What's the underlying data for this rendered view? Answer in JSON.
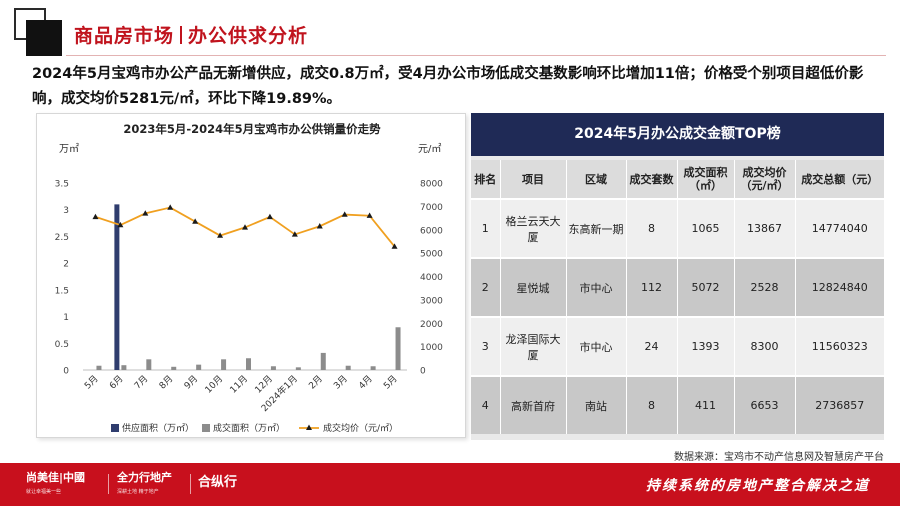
{
  "header": {
    "title_part1": "商品房市场",
    "title_part2": "办公供求分析"
  },
  "summary": "2024年5月宝鸡市办公产品无新增供应，成交0.8万㎡，受4月办公市场低成交基数影响环比增加11倍；价格受个别项目超低价影响，成交均价5281元/㎡，环比下降19.89%。",
  "chart_data": {
    "type": "bar+line",
    "title": "2023年5月-2024年5月宝鸡市办公供销量价走势",
    "y_left_unit": "万㎡",
    "y_right_unit": "元/㎡",
    "y_left_ticks": [
      "0",
      "0.5",
      "1",
      "1.5",
      "2",
      "2.5",
      "3",
      "3.5"
    ],
    "y_left_range": [
      0,
      3.5
    ],
    "y_right_ticks": [
      "0",
      "1000",
      "2000",
      "3000",
      "4000",
      "5000",
      "6000",
      "7000",
      "8000"
    ],
    "y_right_range": [
      0,
      8000
    ],
    "categories": [
      "5月",
      "6月",
      "7月",
      "8月",
      "9月",
      "10月",
      "11月",
      "12月",
      "2024年1月",
      "2月",
      "3月",
      "4月",
      "5月"
    ],
    "series": [
      {
        "name": "供应面积（万㎡）",
        "type": "bar",
        "axis": "left",
        "color": "#2f3d6e",
        "values": [
          0,
          3.1,
          0,
          0,
          0,
          0,
          0,
          0,
          0,
          0,
          0,
          0,
          0
        ]
      },
      {
        "name": "成交面积（万㎡）",
        "type": "bar",
        "axis": "left",
        "color": "#8c8c8c",
        "values": [
          0.08,
          0.09,
          0.2,
          0.06,
          0.1,
          0.2,
          0.22,
          0.07,
          0.05,
          0.32,
          0.08,
          0.07,
          0.8
        ]
      },
      {
        "name": "成交均价（元/㎡）",
        "type": "line",
        "axis": "right",
        "color": "#f0a020",
        "values": [
          6550,
          6200,
          6700,
          6950,
          6350,
          5750,
          6100,
          6550,
          5800,
          6150,
          6650,
          6600,
          5281
        ]
      }
    ],
    "legend_position": "bottom"
  },
  "table": {
    "title": "2024年5月办公成交金额TOP榜",
    "headers": [
      "排名",
      "项目",
      "区域",
      "成交套数",
      "成交面积（㎡）",
      "成交均价（元/㎡）",
      "成交总额（元）"
    ],
    "rows": [
      [
        "1",
        "格兰云天大厦",
        "东高新一期",
        "8",
        "1065",
        "13867",
        "14774040"
      ],
      [
        "2",
        "星悦城",
        "市中心",
        "112",
        "5072",
        "2528",
        "12824840"
      ],
      [
        "3",
        "龙泽国际大厦",
        "市中心",
        "24",
        "1393",
        "8300",
        "11560323"
      ],
      [
        "4",
        "高新首府",
        "南站",
        "8",
        "411",
        "6653",
        "2736857"
      ]
    ]
  },
  "source": "数据来源：宝鸡市不动产信息网及智慧房产平台",
  "footer": {
    "logo1": "尚美佳|中國",
    "logo1_sub": "就让幸福美一些",
    "logo2": "全力行地产",
    "logo2_sub": "深耕土地 精于地产",
    "logo3": "合纵行",
    "slogan": "持续系统的房地产整合解决之道"
  },
  "colors": {
    "brand_red": "#c8101d",
    "title_red": "#c0131d",
    "navy": "#1f2a56"
  }
}
